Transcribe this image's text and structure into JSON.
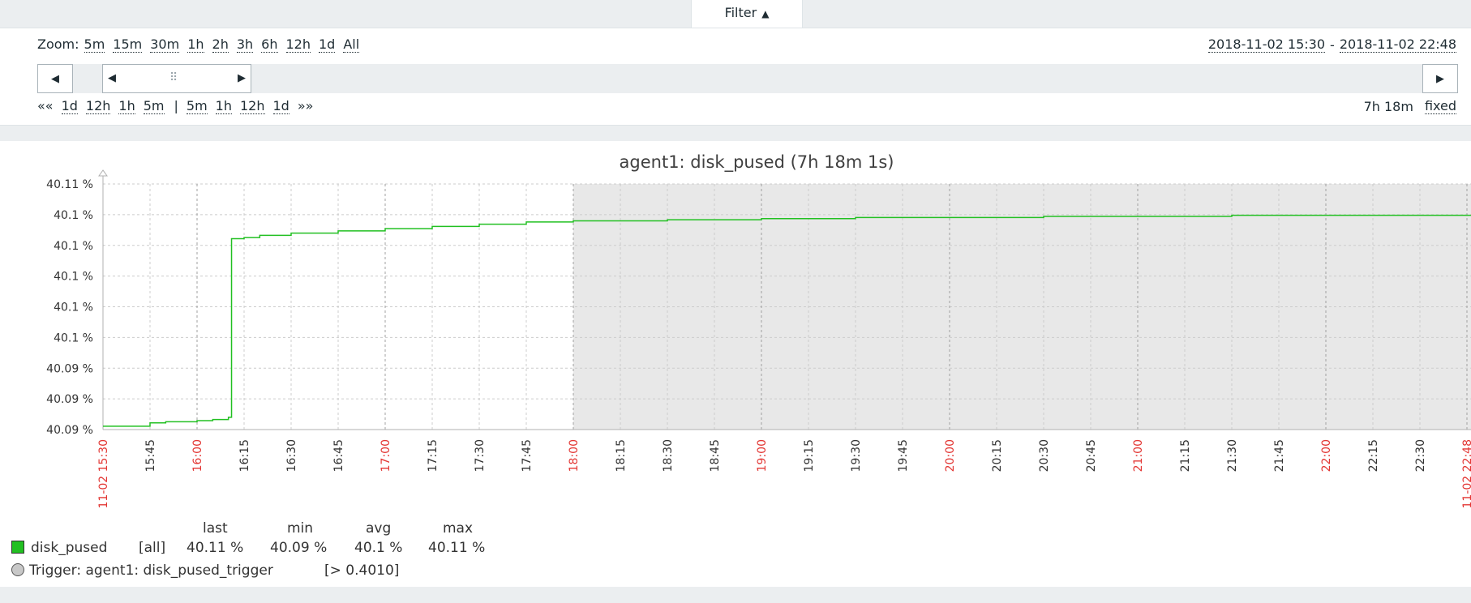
{
  "filter": {
    "label": "Filter",
    "arrow": "▲"
  },
  "zoom": {
    "label": "Zoom:",
    "options": [
      "5m",
      "15m",
      "30m",
      "1h",
      "2h",
      "3h",
      "6h",
      "12h",
      "1d",
      "All"
    ]
  },
  "range": {
    "from": "2018-11-02 15:30",
    "sep": "-",
    "to": "2018-11-02 22:48"
  },
  "timeline": {
    "grip": "⠿"
  },
  "shift": {
    "back_all": "««",
    "back": [
      "1d",
      "12h",
      "1h",
      "5m"
    ],
    "divider": "|",
    "forward": [
      "5m",
      "1h",
      "12h",
      "1d"
    ],
    "forward_all": "»»"
  },
  "period": {
    "duration": "7h 18m",
    "mode": "fixed"
  },
  "graph": {
    "title": "agent1: disk_pused (7h 18m 1s)",
    "y_ticks": [
      "40.11 %",
      "40.1 %",
      "40.1 %",
      "40.1 %",
      "40.1 %",
      "40.1 %",
      "40.09 %",
      "40.09 %",
      "40.09 %"
    ],
    "x_ticks": [
      "11-02 15:30",
      "15:45",
      "16:00",
      "16:15",
      "16:30",
      "16:45",
      "17:00",
      "17:15",
      "17:30",
      "17:45",
      "18:00",
      "18:15",
      "18:30",
      "18:45",
      "19:00",
      "19:15",
      "19:30",
      "19:45",
      "20:00",
      "20:15",
      "20:30",
      "20:45",
      "21:00",
      "21:15",
      "21:30",
      "21:45",
      "22:00",
      "22:15",
      "22:30",
      "11-02 22:48"
    ],
    "x_tick_colors": [
      "#e33734",
      "#333333",
      "#e33734",
      "#333333",
      "#333333",
      "#333333",
      "#e33734",
      "#333333",
      "#333333",
      "#333333",
      "#e33734",
      "#333333",
      "#333333",
      "#333333",
      "#e33734",
      "#333333",
      "#333333",
      "#333333",
      "#e33734",
      "#333333",
      "#333333",
      "#333333",
      "#e33734",
      "#333333",
      "#333333",
      "#333333",
      "#e33734",
      "#333333",
      "#333333",
      "#e33734"
    ],
    "line_color": "#22c022",
    "shade_color": "#e8e8e8"
  },
  "chart_data": {
    "type": "line",
    "title": "agent1: disk_pused (7h 18m 1s)",
    "x_unit": "time (2018-11-02)",
    "series": [
      {
        "name": "disk_pused",
        "x": [
          "15:30",
          "15:45",
          "15:50",
          "16:00",
          "16:05",
          "16:10",
          "16:11",
          "16:15",
          "16:20",
          "16:30",
          "16:45",
          "17:00",
          "17:15",
          "17:30",
          "17:45",
          "18:00",
          "18:15",
          "18:30",
          "19:00",
          "19:30",
          "20:00",
          "20:30",
          "21:00",
          "21:30",
          "22:00",
          "22:30",
          "22:48"
        ],
        "y": [
          40.0878,
          40.0881,
          40.0882,
          40.0883,
          40.0884,
          40.0886,
          40.1046,
          40.1047,
          40.1049,
          40.1051,
          40.1053,
          40.1055,
          40.1057,
          40.1059,
          40.1061,
          40.1062,
          40.1062,
          40.1063,
          40.1064,
          40.1065,
          40.1065,
          40.1066,
          40.1066,
          40.1067,
          40.1067,
          40.1067,
          40.1068
        ],
        "step": true
      }
    ],
    "ylim": [
      40.0875,
      40.1095
    ],
    "grid": true,
    "shaded_from": "18:00"
  },
  "legend": {
    "headers": [
      "last",
      "min",
      "avg",
      "max"
    ],
    "item": {
      "name": "disk_pused",
      "func": "[all]",
      "last": "40.11 %",
      "min": "40.09 %",
      "avg": "40.1 %",
      "max": "40.11 %"
    },
    "trigger": {
      "label": "Trigger: agent1: disk_pused_trigger",
      "cond": "[> 0.4010]"
    }
  }
}
